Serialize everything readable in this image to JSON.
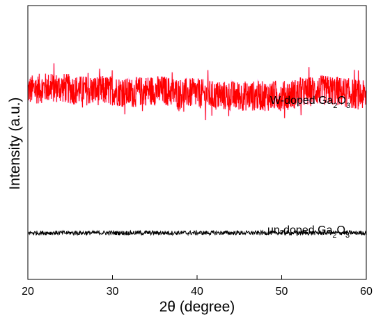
{
  "chart_data": {
    "type": "line",
    "xlabel": "2θ (degree)",
    "ylabel": "Intensity (a.u.)",
    "xlim": [
      20,
      60
    ],
    "x_ticks": [
      "20",
      "30",
      "40",
      "50",
      "60"
    ],
    "y_ticks_shown": false,
    "grid": false,
    "legend": "inline labels above each trace",
    "series": [
      {
        "name": "W-doped Ga2O3",
        "label_main": "W-doped Ga",
        "label_sub1": "2",
        "label_mid": "O",
        "label_sub2": "3",
        "color": "#ff0000",
        "glow_color": "#ff99ff",
        "kind": "noisy-amorphous",
        "x": [
          20,
          22,
          24,
          26,
          28,
          30,
          32,
          34,
          36,
          38,
          40,
          42,
          44,
          46,
          48,
          50,
          52,
          54,
          56,
          58,
          60
        ],
        "y": [
          0.69,
          0.7,
          0.7,
          0.69,
          0.69,
          0.69,
          0.68,
          0.69,
          0.69,
          0.68,
          0.68,
          0.67,
          0.67,
          0.67,
          0.67,
          0.67,
          0.68,
          0.69,
          0.69,
          0.68,
          0.67
        ],
        "noise_amplitude": 0.055
      },
      {
        "name": "un-doped Ga2O3",
        "label_main": "un-doped Ga",
        "label_sub1": "2",
        "label_mid": "O",
        "label_sub2": "3",
        "color": "#000000",
        "kind": "flat",
        "x": [
          20,
          25,
          30,
          35,
          40,
          45,
          50,
          55,
          60
        ],
        "y": [
          0.17,
          0.17,
          0.17,
          0.17,
          0.17,
          0.17,
          0.17,
          0.17,
          0.17
        ],
        "noise_amplitude": 0.008
      }
    ]
  }
}
